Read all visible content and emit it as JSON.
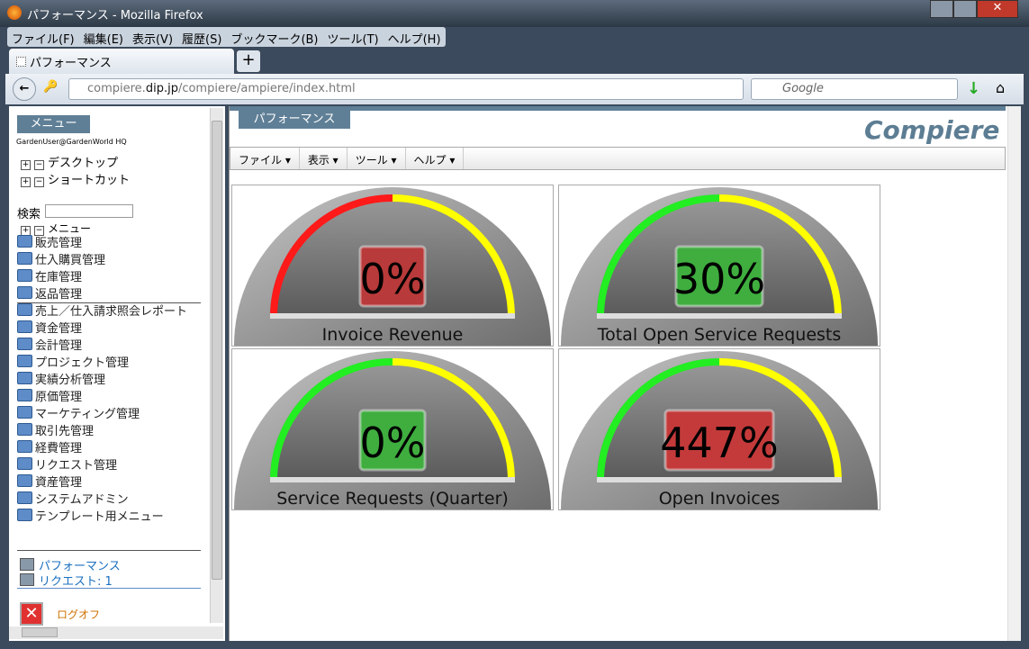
{
  "window": {
    "title": "パフォーマンス - Mozilla Firefox"
  },
  "menubar": [
    "ファイル(F)",
    "編集(E)",
    "表示(V)",
    "履歴(S)",
    "ブックマーク(B)",
    "ツール(T)",
    "ヘルプ(H)"
  ],
  "tab": {
    "title": "パフォーマンス"
  },
  "address": {
    "url_prefix": "compiere.",
    "url_host": "dip.jp",
    "url_path": "/compiere/ampiere/index.html"
  },
  "search": {
    "placeholder": "Google"
  },
  "sidebar": {
    "header": "メニュー",
    "user": "GardenUser@GardenWorld HQ",
    "tree": [
      "デスクトップ",
      "ショートカット"
    ],
    "search_label": "検索",
    "menu_root": "メニュー",
    "folders": [
      "販売管理",
      "仕入購買管理",
      "在庫管理",
      "返品管理",
      "売上／仕入請求照会レポート",
      "資金管理",
      "会計管理",
      "プロジェクト管理",
      "実績分析管理",
      "原価管理",
      "マーケティング管理",
      "取引先管理",
      "経費管理",
      "リクエスト管理",
      "資産管理",
      "システムアドミン",
      "テンプレート用メニュー"
    ],
    "links": [
      "パフォーマンス",
      "リクエスト: 1"
    ],
    "logout": "ログオフ"
  },
  "main": {
    "tab": "パフォーマンス",
    "logo": "Compiere",
    "menu": [
      "ファイル",
      "表示",
      "ツール",
      "ヘルプ"
    ],
    "gauges": [
      {
        "label": "Invoice Revenue",
        "value": "0%",
        "low_color": "#ff1a1a",
        "box_color": "#b93a3a"
      },
      {
        "label": "Total Open Service Requests",
        "value": "30%",
        "low_color": "#22ee22",
        "box_color": "#3fae3f"
      },
      {
        "label": "Service Requests (Quarter)",
        "value": "0%",
        "low_color": "#22ee22",
        "box_color": "#3fae3f"
      },
      {
        "label": "Open Invoices",
        "value": "447%",
        "low_color": "#22ee22",
        "box_color": "#c43a3a"
      }
    ]
  }
}
